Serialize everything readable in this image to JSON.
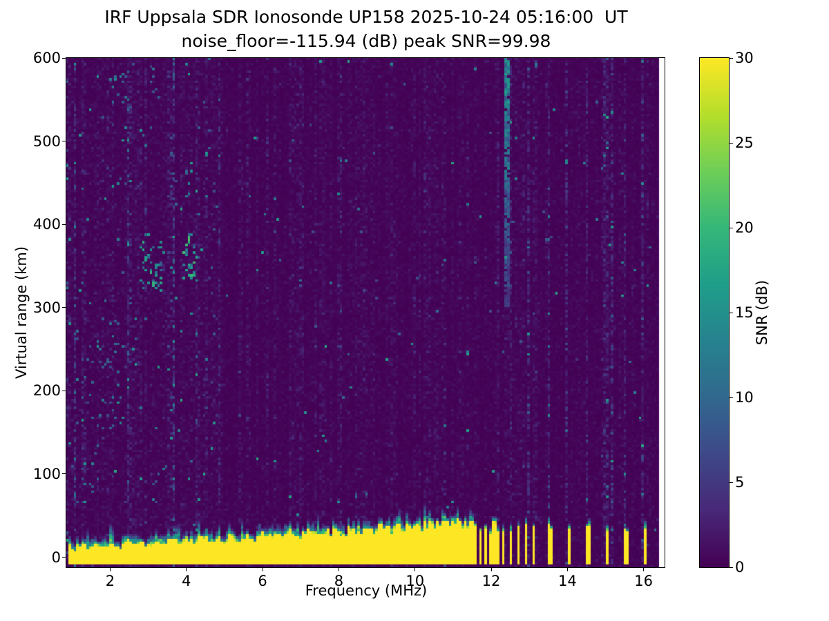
{
  "chart_data": {
    "type": "heatmap",
    "title": "IRF Uppsala SDR Ionosonde UP158 2025-10-24 05:16:00  UT",
    "subtitle": "noise_floor=-115.94 (dB) peak SNR=99.98",
    "station_id": "UP158",
    "datetime_ut": "2025-10-24 05:16:00",
    "noise_floor_db": -115.94,
    "peak_snr_db": 99.98,
    "xlabel": "Frequency (MHz)",
    "ylabel": "Virtual range (km)",
    "colorbar_label": "SNR (dB)",
    "xlim": [
      0.85,
      16.55
    ],
    "ylim": [
      -12,
      600
    ],
    "clim": [
      0,
      30
    ],
    "xticks": [
      2,
      4,
      6,
      8,
      10,
      12,
      14,
      16
    ],
    "yticks": [
      0,
      100,
      200,
      300,
      400,
      500,
      600
    ],
    "colorbar_ticks": [
      0,
      5,
      10,
      15,
      20,
      25,
      30
    ],
    "grid": false,
    "legend": false,
    "colormap": "viridis",
    "colormap_stops": [
      "#440154",
      "#482878",
      "#3e4989",
      "#31688e",
      "#26828e",
      "#1f9e89",
      "#35b779",
      "#6ece58",
      "#b5de2b",
      "#fde725"
    ],
    "data_f_range": [
      0.88,
      16.45
    ],
    "features": {
      "ground_echo_band": {
        "f_mhz": [
          0.9,
          11.62
        ],
        "top_km": [
          10,
          40
        ],
        "base_km": -8,
        "fringe_km": 11,
        "snr_db": 30
      },
      "echo_bars_mhz": [
        11.72,
        11.87,
        12.02,
        12.17,
        12.32,
        12.52,
        12.72,
        12.92,
        13.12,
        13.55,
        14.05,
        14.55,
        15.05,
        15.55,
        16.05
      ],
      "echo_bar_halfwidth_mhz": 0.045,
      "echo_bar_top_km": [
        28,
        42
      ],
      "interference_line": {
        "f_mhz": 12.42,
        "halfwidth_mhz": 0.05,
        "range_km": [
          300,
          600
        ],
        "snr_db": 15
      },
      "noise_stripes": {
        "f_start_mhz": 12.0,
        "f_end_mhz": 16.4,
        "spacing_mhz": 0.5,
        "halfwidth_mhz": 0.035,
        "snr_boost": 2.2
      },
      "noise_patches": [
        {
          "f_mhz": [
            2.75,
            3.45
          ],
          "range_km": [
            320,
            395
          ],
          "density": 0.16,
          "snr_db": [
            8,
            20
          ]
        },
        {
          "f_mhz": [
            3.9,
            4.25
          ],
          "range_km": [
            330,
            390
          ],
          "density": 0.2,
          "snr_db": [
            10,
            22
          ]
        },
        {
          "f_mhz": [
            3.95,
            4.2
          ],
          "range_km": [
            420,
            475
          ],
          "density": 0.13,
          "snr_db": [
            8,
            18
          ]
        },
        {
          "f_mhz": [
            1.05,
            2.35
          ],
          "range_km": [
            150,
            310
          ],
          "density": 0.05,
          "snr_db": [
            6,
            14
          ]
        },
        {
          "f_mhz": [
            1.0,
            1.7
          ],
          "range_km": [
            55,
            135
          ],
          "density": 0.05,
          "snr_db": [
            6,
            12
          ]
        },
        {
          "f_mhz": [
            2.0,
            2.45
          ],
          "range_km": [
            540,
            595
          ],
          "density": 0.07,
          "snr_db": [
            7,
            14
          ]
        },
        {
          "f_mhz": [
            2.95,
            3.4
          ],
          "range_km": [
            535,
            590
          ],
          "density": 0.05,
          "snr_db": [
            6,
            12
          ]
        },
        {
          "f_mhz": [
            4.55,
            4.75
          ],
          "range_km": [
            200,
            600
          ],
          "density": 0.04,
          "snr_db": [
            5,
            10
          ]
        }
      ],
      "background_snr_db": [
        0,
        3
      ]
    },
    "description": "Ionogram heatmap on viridis colormap: dark-purple noise background with faint vertical striations; a saturated yellow ground-echo band from about 0 to 40 km virtual range spanning 1-11.6 MHz that thickens with frequency, breaking into discrete vertical yellow bars from ~11.7 to 16.1 MHz; a teal vertical interference line near 12.4 MHz between ~300 and 600 km; scattered teal noise speckles concentrated around 2.8-4.2 MHz at 320-475 km; periodic faint noisy columns every ~0.5 MHz above 12 MHz; thin white no-data strip at the far right edge of the axes."
  }
}
